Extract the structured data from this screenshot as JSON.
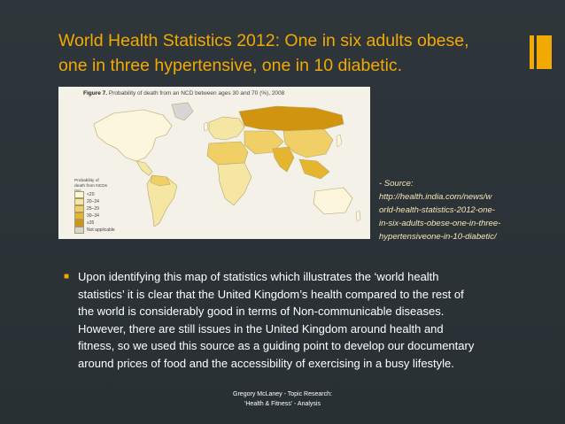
{
  "slide": {
    "title_lines": [
      "World Health Statistics 2012: One in six adults obese,",
      "one in three hypertensive, one in 10 diabetic."
    ],
    "figure": {
      "caption_label": "Figure 7.",
      "caption_text": "Probability of death from an NCD between ages 30 and 70 (%), 2008",
      "legend_title": "Probability of death from NCDs (%)",
      "legend_items": [
        "<20",
        "20–24",
        "25–29",
        "30–34",
        "≥35",
        "Not applicable"
      ]
    },
    "source_lines": [
      "- Source:",
      "http://health.india.com/news/w",
      "orld-health-statistics-2012-one-",
      "in-six-adults-obese-one-in-three-",
      "hypertensiveone-in-10-diabetic/"
    ],
    "bullet_icon": "square-bullet-icon",
    "body_lines": [
      "Upon identifying this map of statistics which illustrates the ‘world health",
      "statistics’ it is clear that the United Kingdom’s health compared to the rest of",
      "the world is considerably good in terms of Non-communicable diseases.",
      "However, there are still issues in the United Kingdom around health and",
      "fitness, so we used this source as a guiding point to develop our documentary",
      "around prices of food and the accessibility of exercising in a busy lifestyle."
    ],
    "footer_lines": [
      "Gregory McLaney - Topic Research:",
      "'Health & Fitness' - Analysis"
    ]
  },
  "colors": {
    "background": "#2b3237",
    "accent": "#f2a900",
    "body_text": "#ffffff",
    "source_text": "#f7e6b6",
    "legend_swatches": [
      "#fbf6dc",
      "#f6e6a4",
      "#efcf66",
      "#e6b52f",
      "#d09410",
      "#d6d6d6"
    ]
  }
}
